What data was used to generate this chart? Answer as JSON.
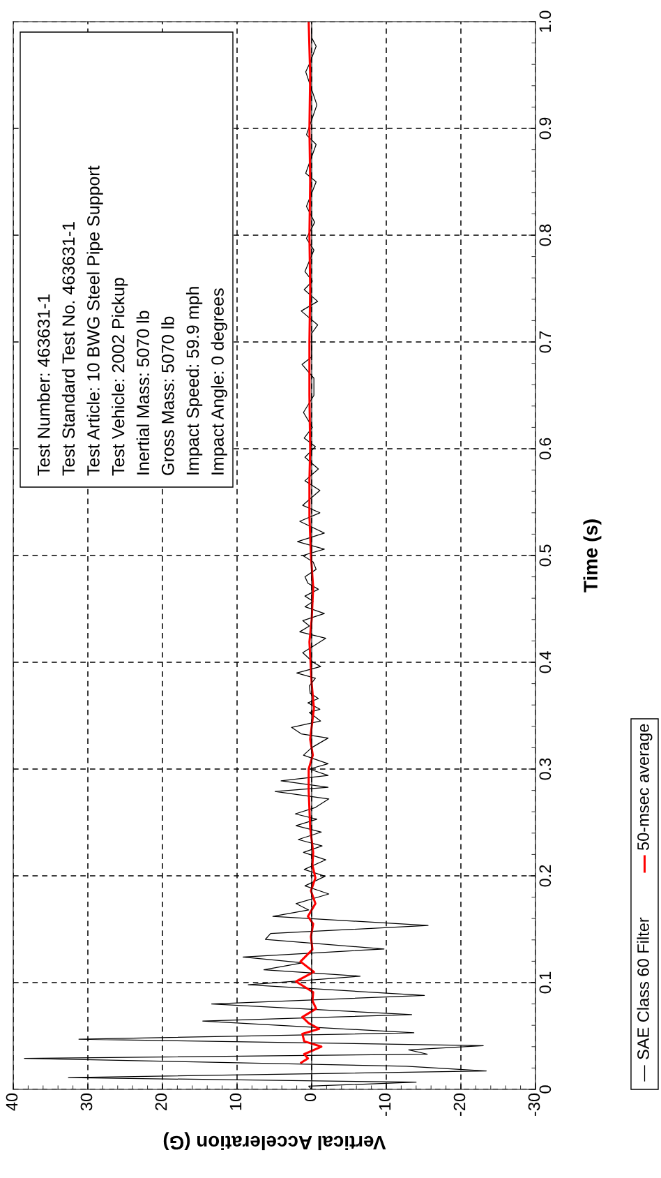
{
  "chart_data": {
    "type": "line",
    "xlabel": "Vertical Acceleration (G)",
    "ylabel": "Time (s)",
    "xlim": [
      40,
      -30
    ],
    "ylim": [
      0,
      1
    ],
    "xticks": [
      40,
      30,
      20,
      10,
      0,
      {
        "value": -10,
        "label": "-10"
      },
      {
        "value": -20,
        "label": "-20"
      },
      {
        "value": -30,
        "label": "-30"
      }
    ],
    "yticks": [
      0,
      0.1,
      0.2,
      0.3,
      0.4,
      0.5,
      0.6,
      0.7,
      0.8,
      0.9,
      {
        "value": 1,
        "label": "1.0"
      }
    ],
    "grid": true,
    "legend": "right",
    "line_style": "solid",
    "marker": "none",
    "annotations": [
      "Test Number: 463631-1",
      "Test Standard Test No. 463631-1",
      "Test Article: 10 BWG Steel Pipe Support",
      "Test Vehicle: 2002 Pickup",
      "Inertial Mass: 5070 lb",
      "Gross Mass: 5070 lb",
      "Impact Speed: 59.9 mph",
      "Impact Angle: 0 degrees"
    ],
    "series": [
      {
        "name": "SAE Class 60 Filter",
        "color": "#000000",
        "values": [
          0,
          0.003,
          0.0067,
          0.011,
          0.0173,
          0.0217,
          0.029,
          0.033,
          0.037,
          0.041,
          0.047,
          0.053,
          0.064,
          0.07,
          0.08,
          0.088,
          0.098,
          0.106,
          0.112,
          0.1185,
          0.124,
          0.1315,
          0.1405,
          0.146,
          0.1535,
          0.162,
          0.168,
          0.174,
          0.183,
          0.1906,
          0.1996,
          0.206,
          0.215,
          0.222,
          0.228,
          0.234,
          0.241,
          0.247,
          0.253,
          0.258,
          0.264,
          0.272,
          0.279,
          0.283,
          0.289,
          0.294,
          0.3,
          0.305,
          0.31,
          0.313,
          0.32,
          0.329,
          0.333,
          0.339,
          0.345,
          0.353,
          0.356,
          0.362,
          0.366,
          0.371,
          0.378,
          0.385,
          0.39,
          0.396,
          0.4,
          0.409,
          0.415,
          0.4225,
          0.4285,
          0.434,
          0.439,
          0.4457,
          0.452,
          0.457,
          0.462,
          0.4684,
          0.474,
          0.48,
          0.487,
          0.494,
          0.5,
          0.506,
          0.513,
          0.521,
          0.532,
          0.54,
          0.547,
          0.561,
          0.57,
          0.581,
          0.592,
          0.602,
          0.61,
          0.62,
          0.634,
          0.65,
          0.666,
          0.679,
          0.686,
          0.708,
          0.716,
          0.729,
          0.738,
          0.749,
          0.757,
          0.766,
          0.786,
          0.797,
          0.812,
          0.827,
          0.85,
          0.858,
          0.885,
          0.894,
          0.922,
          0.953,
          0.962,
          0.977,
          0.985,
          0.994
        ],
        "x": [
          0,
          0.4,
          -14,
          32.6,
          -23.4,
          -12.7,
          38.5,
          -15.5,
          -13,
          -23,
          31.2,
          -13.7,
          14.6,
          -13.4,
          13.4,
          -15.1,
          8.5,
          -6.5,
          6.4,
          1.2,
          9.2,
          -9.7,
          6.2,
          5.5,
          -15.6,
          5.2,
          0.4,
          2.1,
          -2.3,
          0.9,
          -1.8,
          1,
          -1.9,
          1.1,
          -1.4,
          1.8,
          -1.3,
          2.1,
          -0.7,
          2.2,
          -0.5,
          -2.3,
          4.9,
          -2.2,
          4.1,
          -2.2,
          0.3,
          -2.2,
          -0.1,
          1.1,
          0,
          -2.2,
          1.4,
          2.7,
          -1.2,
          0.3,
          -1.1,
          0.5,
          -0.9,
          0.2,
          0.3,
          -0.5,
          2.0,
          -1.2,
          -0.2,
          1.2,
          -0.2,
          -1.9,
          1.6,
          0.3,
          1.2,
          -1.7,
          0.9,
          -0.2,
          0.9,
          -0.9,
          0.5,
          0.9,
          -0.6,
          -0.2,
          1.2,
          -1.7,
          1.9,
          -1.7,
          1.6,
          -1.1,
          1.2,
          -1.1,
          0.9,
          -0.9,
          0.9,
          -0.5,
          1,
          -0.1,
          1.1,
          -0.3,
          -0.3,
          1.3,
          0,
          0,
          -0.8,
          1.4,
          -0.8,
          1,
          -0.1,
          0.9,
          -0.3,
          0.7,
          -0.4,
          0.7,
          -0.6,
          0.8,
          -0.6,
          0.7,
          -0.7,
          0.8,
          0.2,
          -0.6,
          0,
          0
        ]
      },
      {
        "name": "50-msec average",
        "color": "#ff0000",
        "values": [
          0.025,
          0.029,
          0.033,
          0.04,
          0.045,
          0.052,
          0.0567,
          0.062,
          0.0677,
          0.0756,
          0.083,
          0.091,
          0.101,
          0.11,
          0.1197,
          0.131,
          0.143,
          0.155,
          0.162,
          0.174,
          0.186,
          0.198,
          0.21,
          0.222,
          0.245,
          0.28,
          0.3,
          0.313,
          0.328,
          0.357,
          0.38,
          0.4,
          0.419,
          0.44,
          0.47,
          0.5,
          0.537,
          0.57,
          0.6,
          0.65,
          0.7,
          0.75,
          0.8,
          0.85,
          0.9,
          0.95,
          1.0
        ],
        "x": [
          1.4,
          0.5,
          1.0,
          -1.3,
          1.0,
          1.25,
          -1.0,
          0.4,
          1.25,
          -0.6,
          -0.1,
          -0.2,
          2.1,
          -0.3,
          1.5,
          -0.1,
          0.1,
          -0.2,
          0.5,
          -0.5,
          0.1,
          -0.5,
          -0.1,
          -0.2,
          0.2,
          0.4,
          0.4,
          -0.15,
          0.2,
          -0.3,
          0,
          0.15,
          0.3,
          0,
          -0.2,
          0.1,
          0.3,
          0.3,
          0.2,
          0.3,
          0.3,
          0.2,
          0.3,
          0.2,
          0.3,
          0.2,
          0.4
        ]
      }
    ]
  }
}
